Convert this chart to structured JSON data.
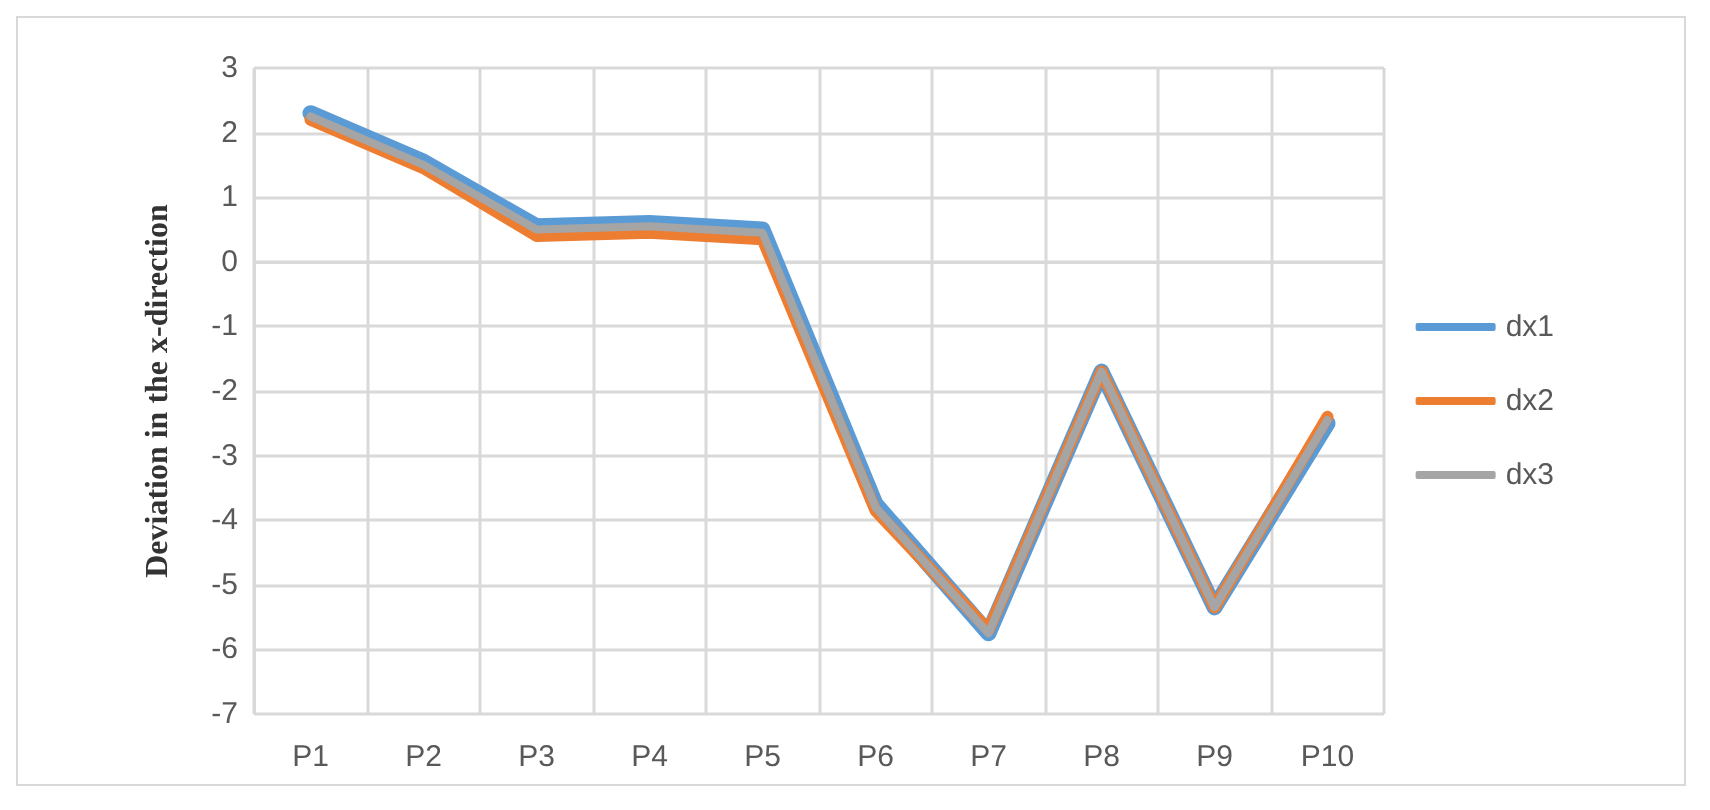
{
  "chart_data": {
    "type": "line",
    "ylabel": "Deviation in the x-direction",
    "categories": [
      "P1",
      "P2",
      "P3",
      "P4",
      "P5",
      "P6",
      "P7",
      "P8",
      "P9",
      "P10"
    ],
    "series": [
      {
        "name": "dx1",
        "color": "#5b9bd5",
        "values": [
          2.3,
          1.55,
          0.55,
          0.6,
          0.5,
          -3.75,
          -5.75,
          -1.7,
          -5.35,
          -2.5
        ]
      },
      {
        "name": "dx2",
        "color": "#ed7d31",
        "values": [
          2.2,
          1.45,
          0.4,
          0.45,
          0.35,
          -3.85,
          -5.7,
          -1.7,
          -5.35,
          -2.4
        ]
      },
      {
        "name": "dx3",
        "color": "#a5a5a5",
        "values": [
          2.25,
          1.5,
          0.5,
          0.55,
          0.45,
          -3.8,
          -5.75,
          -1.7,
          -5.35,
          -2.45
        ]
      }
    ],
    "ylim": [
      -7,
      3
    ],
    "yticks": [
      -7,
      -6,
      -5,
      -4,
      -3,
      -2,
      -1,
      0,
      1,
      2,
      3
    ],
    "grid": true,
    "legend": "right",
    "marker": "none",
    "line_style": "solid"
  }
}
